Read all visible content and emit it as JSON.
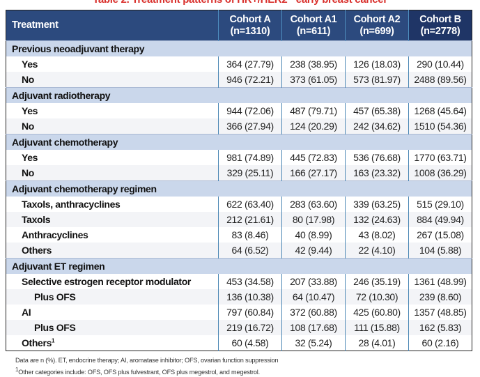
{
  "title": "Table 2. Treatment patterns of HR+/HER2− early breast cancer",
  "header": {
    "treatment": "Treatment",
    "cohorts": [
      {
        "name": "Cohort A",
        "n": "(n=1310)"
      },
      {
        "name": "Cohort A1",
        "n": "(n=611)"
      },
      {
        "name": "Cohort A2",
        "n": "(n=699)"
      },
      {
        "name": "Cohort B",
        "n": "(n=2778)"
      }
    ]
  },
  "sections": [
    {
      "title": "Previous neoadjuvant therapy",
      "rows": [
        {
          "label": "Yes",
          "values": [
            "364 (27.79)",
            "238 (38.95)",
            "126 (18.03)",
            "290 (10.44)"
          ]
        },
        {
          "label": "No",
          "values": [
            "946 (72.21)",
            "373 (61.05)",
            "573 (81.97)",
            "2488 (89.56)"
          ]
        }
      ]
    },
    {
      "title": "Adjuvant radiotherapy",
      "rows": [
        {
          "label": "Yes",
          "values": [
            "944 (72.06)",
            "487 (79.71)",
            "457 (65.38)",
            "1268 (45.64)"
          ]
        },
        {
          "label": "No",
          "values": [
            "366 (27.94)",
            "124 (20.29)",
            "242 (34.62)",
            "1510 (54.36)"
          ]
        }
      ]
    },
    {
      "title": "Adjuvant chemotherapy",
      "rows": [
        {
          "label": "Yes",
          "values": [
            "981 (74.89)",
            "445 (72.83)",
            "536 (76.68)",
            "1770 (63.71)"
          ]
        },
        {
          "label": "No",
          "values": [
            "329 (25.11)",
            "166 (27.17)",
            "163 (23.32)",
            "1008 (36.29)"
          ]
        }
      ]
    },
    {
      "title": "Adjuvant chemotherapy regimen",
      "rows": [
        {
          "label": "Taxols, anthracyclines",
          "values": [
            "622 (63.40)",
            "283 (63.60)",
            "339 (63.25)",
            "515 (29.10)"
          ]
        },
        {
          "label": "Taxols",
          "values": [
            "212 (21.61)",
            "80 (17.98)",
            "132 (24.63)",
            "884 (49.94)"
          ]
        },
        {
          "label": "Anthracyclines",
          "values": [
            "83 (8.46)",
            "40 (8.99)",
            "43 (8.02)",
            "267 (15.08)"
          ]
        },
        {
          "label": "Others",
          "values": [
            "64 (6.52)",
            "42 (9.44)",
            "22 (4.10)",
            "104 (5.88)"
          ]
        }
      ]
    },
    {
      "title": "Adjuvant ET regimen",
      "rows": [
        {
          "label": "Selective estrogen receptor modulator",
          "values": [
            "453 (34.58)",
            "207 (33.88)",
            "246 (35.19)",
            "1361 (48.99)"
          ]
        },
        {
          "label": "Plus OFS",
          "indent": true,
          "values": [
            "136 (10.38)",
            "64 (10.47)",
            "72 (10.30)",
            "239 (8.60)"
          ]
        },
        {
          "label": "AI",
          "values": [
            "797 (60.84)",
            "372 (60.88)",
            "425 (60.80)",
            "1357 (48.85)"
          ]
        },
        {
          "label": "Plus OFS",
          "indent": true,
          "values": [
            "219 (16.72)",
            "108 (17.68)",
            "111 (15.88)",
            "162 (5.83)"
          ]
        },
        {
          "label": "Others",
          "sup": "1",
          "values": [
            "60 (4.58)",
            "32 (5.24)",
            "28 (4.01)",
            "60 (2.16)"
          ]
        }
      ]
    }
  ],
  "notes": [
    "Data are n (%). ET, endocrine therapy; AI, aromatase inhibitor; OFS, ovarian function suppression",
    {
      "sup": "1",
      "text": "Other categories include: OFS, OFS plus fulvestrant, OFS plus megestrol, and megestrol."
    }
  ],
  "colors": {
    "header": "#2c4a7e",
    "header_last": "#1f3566",
    "section": "#cad7eb",
    "title": "#d9302c",
    "divider": "#4a86b4"
  }
}
